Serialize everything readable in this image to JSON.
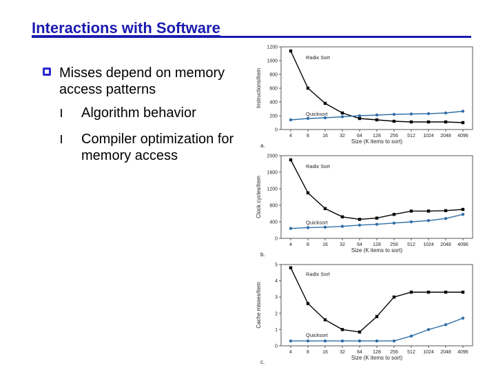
{
  "slide": {
    "title": "Interactions with Software",
    "bullet": "Misses depend on memory access patterns",
    "sub_bullets": [
      "Algorithm behavior",
      "Compiler optimization for memory access"
    ]
  },
  "colors": {
    "title": "#1a1ab0",
    "radix": "#000000",
    "quick": "#2f6fa8"
  },
  "chart_data": [
    {
      "type": "line",
      "panel_label": "a.",
      "xlabel": "Size (K items to sort)",
      "ylabel": "Instructions/item",
      "categories": [
        "4",
        "8",
        "16",
        "32",
        "64",
        "128",
        "256",
        "512",
        "1024",
        "2048",
        "4096"
      ],
      "ylim": [
        0,
        1200
      ],
      "yticks": [
        0,
        200,
        400,
        600,
        800,
        1000,
        1200
      ],
      "series": [
        {
          "name": "Radix Sort",
          "values": [
            1140,
            600,
            380,
            240,
            160,
            140,
            120,
            110,
            110,
            110,
            100
          ]
        },
        {
          "name": "Quicksort",
          "values": [
            140,
            160,
            170,
            185,
            200,
            210,
            220,
            225,
            230,
            240,
            265
          ]
        }
      ]
    },
    {
      "type": "line",
      "panel_label": "b.",
      "xlabel": "Size (K items to sort)",
      "ylabel": "Clock cycles/item",
      "categories": [
        "4",
        "8",
        "16",
        "32",
        "64",
        "128",
        "256",
        "512",
        "1024",
        "2048",
        "4096"
      ],
      "ylim": [
        0,
        2000
      ],
      "yticks": [
        0,
        400,
        800,
        1200,
        1600,
        2000
      ],
      "series": [
        {
          "name": "Radix Sort",
          "values": [
            1900,
            1100,
            720,
            520,
            460,
            490,
            580,
            660,
            660,
            670,
            700
          ]
        },
        {
          "name": "Quicksort",
          "values": [
            240,
            260,
            270,
            290,
            320,
            340,
            370,
            400,
            430,
            480,
            580
          ]
        }
      ]
    },
    {
      "type": "line",
      "panel_label": "c.",
      "xlabel": "Size (K items to sort)",
      "ylabel": "Cache misses/item",
      "categories": [
        "4",
        "8",
        "16",
        "32",
        "64",
        "128",
        "256",
        "512",
        "1024",
        "2048",
        "4096"
      ],
      "ylim": [
        0,
        5
      ],
      "yticks": [
        0,
        1,
        2,
        3,
        4,
        5
      ],
      "series": [
        {
          "name": "Radix Sort",
          "values": [
            4.8,
            2.6,
            1.6,
            1.0,
            0.85,
            1.8,
            3.0,
            3.3,
            3.3,
            3.3,
            3.3
          ]
        },
        {
          "name": "Quicksort",
          "values": [
            0.3,
            0.3,
            0.3,
            0.3,
            0.3,
            0.3,
            0.3,
            0.6,
            1.0,
            1.3,
            1.7
          ]
        }
      ]
    }
  ]
}
